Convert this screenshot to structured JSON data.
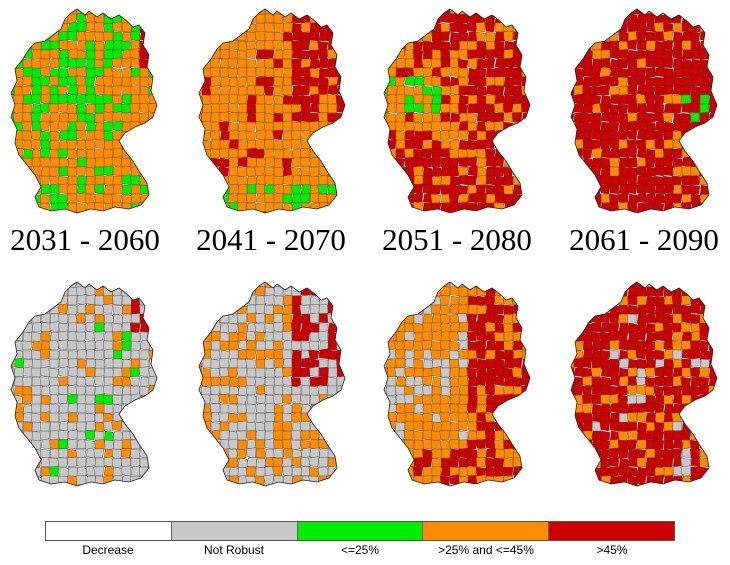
{
  "colors": {
    "decrease": "#ffffff",
    "not_robust": "#c8c8c8",
    "le25": "#00ee00",
    "gt25_le45": "#ff8c00",
    "gt45": "#cc0000",
    "border": "#333333"
  },
  "periods": [
    "2031 - 2060",
    "2041 - 2070",
    "2051 - 2080",
    "2061 - 2090"
  ],
  "legend": [
    {
      "label": "Decrease",
      "color": "#ffffff"
    },
    {
      "label": "Not Robust",
      "color": "#c8c8c8"
    },
    {
      "label": "<=25%",
      "color": "#00ee00"
    },
    {
      "label": ">25% and <=45%",
      "color": "#ff8c00"
    },
    {
      "label": ">45%",
      "color": "#cc0000"
    }
  ]
}
